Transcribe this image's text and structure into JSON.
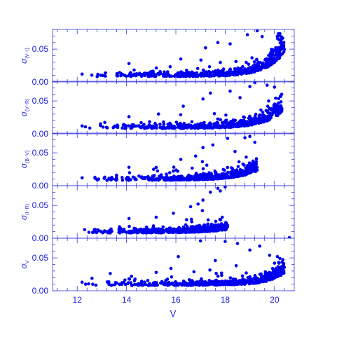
{
  "chart_data": {
    "type": "scatter",
    "xlabel": "V",
    "xlim": [
      11.0,
      20.8
    ],
    "x_ticks": [
      12,
      14,
      16,
      18,
      20
    ],
    "x_tick_labels": [
      "12",
      "14",
      "16",
      "18",
      "20"
    ],
    "colors": {
      "axis": "#3a3ad8",
      "text": "#2020e0",
      "points": "#0000ee"
    },
    "panels": [
      {
        "ylabel": "σ",
        "ylabel_sub": "(V−I)",
        "ylim": [
          0,
          0.08
        ],
        "y_ticks": [
          0,
          0.05
        ],
        "y_tick_labels": [
          "0.00",
          "0.05"
        ],
        "profile": {
          "k": 0.011,
          "spread": 2.4,
          "vmax": 20.4
        },
        "points": [
          [
            12.2,
            0.012
          ],
          [
            13.1,
            0.01
          ],
          [
            14.1,
            0.028
          ],
          [
            15.0,
            0.016
          ],
          [
            16.2,
            0.035
          ],
          [
            17.2,
            0.052
          ],
          [
            18.2,
            0.058
          ],
          [
            18.9,
            0.072
          ],
          [
            19.5,
            0.069
          ],
          [
            20.3,
            0.058
          ],
          [
            19.3,
            0.078
          ],
          [
            17.7,
            0.06
          ]
        ]
      },
      {
        "ylabel": "σ",
        "ylabel_sub": "(V−R)",
        "ylim": [
          0,
          0.08
        ],
        "y_ticks": [
          0,
          0.05
        ],
        "y_tick_labels": [
          "0.00",
          "0.05"
        ],
        "profile": {
          "k": 0.009,
          "spread": 2.2,
          "vmax": 20.3
        },
        "points": [
          [
            12.2,
            0.012
          ],
          [
            14.1,
            0.026
          ],
          [
            15.5,
            0.018
          ],
          [
            16.3,
            0.042
          ],
          [
            17.1,
            0.053
          ],
          [
            17.4,
            0.062
          ],
          [
            18.2,
            0.065
          ],
          [
            19.0,
            0.072
          ],
          [
            19.7,
            0.074
          ],
          [
            20.0,
            0.071
          ],
          [
            19.2,
            0.078
          ],
          [
            18.6,
            0.055
          ]
        ]
      },
      {
        "ylabel": "σ",
        "ylabel_sub": "(B−V)",
        "ylim": [
          0,
          0.08
        ],
        "y_ticks": [
          0,
          0.05
        ],
        "y_tick_labels": [
          "0.00",
          "0.05"
        ],
        "profile": {
          "k": 0.018,
          "spread": 2.1,
          "vmax": 19.3
        },
        "points": [
          [
            12.2,
            0.012
          ],
          [
            14.1,
            0.028
          ],
          [
            15.1,
            0.025
          ],
          [
            16.2,
            0.04
          ],
          [
            17.1,
            0.058
          ],
          [
            17.5,
            0.062
          ],
          [
            18.1,
            0.072
          ],
          [
            18.8,
            0.073
          ],
          [
            19.0,
            0.075
          ],
          [
            19.2,
            0.066
          ],
          [
            18.4,
            0.052
          ],
          [
            16.8,
            0.045
          ]
        ]
      },
      {
        "ylabel": "σ",
        "ylabel_sub": "(I−R)",
        "ylim": [
          0,
          0.08
        ],
        "y_ticks": [
          0,
          0.05
        ],
        "y_tick_labels": [
          "0.00",
          "0.05"
        ],
        "profile": {
          "k": 0.026,
          "spread": 2.1,
          "vmax": 18.1
        },
        "points": [
          [
            12.3,
            0.013
          ],
          [
            14.1,
            0.03
          ],
          [
            15.2,
            0.032
          ],
          [
            15.9,
            0.038
          ],
          [
            16.6,
            0.048
          ],
          [
            17.1,
            0.058
          ],
          [
            17.4,
            0.07
          ],
          [
            17.8,
            0.072
          ],
          [
            18.0,
            0.078
          ],
          [
            17.7,
            0.076
          ],
          [
            16.9,
            0.052
          ],
          [
            20.6,
            0.001
          ]
        ]
      },
      {
        "ylabel": "σ",
        "ylabel_sub": "V",
        "ylim": [
          0,
          0.08
        ],
        "y_ticks": [
          0,
          0.05
        ],
        "y_tick_labels": [
          "0.00",
          "0.05"
        ],
        "profile": {
          "k": 0.005,
          "spread": 2.6,
          "vmax": 20.4
        },
        "points": [
          [
            12.2,
            0.013
          ],
          [
            12.6,
            0.019
          ],
          [
            14.2,
            0.022
          ],
          [
            15.2,
            0.028
          ],
          [
            15.8,
            0.034
          ],
          [
            16.1,
            0.052
          ],
          [
            17.0,
            0.076
          ],
          [
            17.6,
            0.046
          ],
          [
            18.0,
            0.075
          ],
          [
            18.5,
            0.072
          ],
          [
            19.0,
            0.062
          ],
          [
            19.4,
            0.068
          ],
          [
            20.0,
            0.042
          ],
          [
            19.8,
            0.054
          ]
        ]
      }
    ]
  }
}
